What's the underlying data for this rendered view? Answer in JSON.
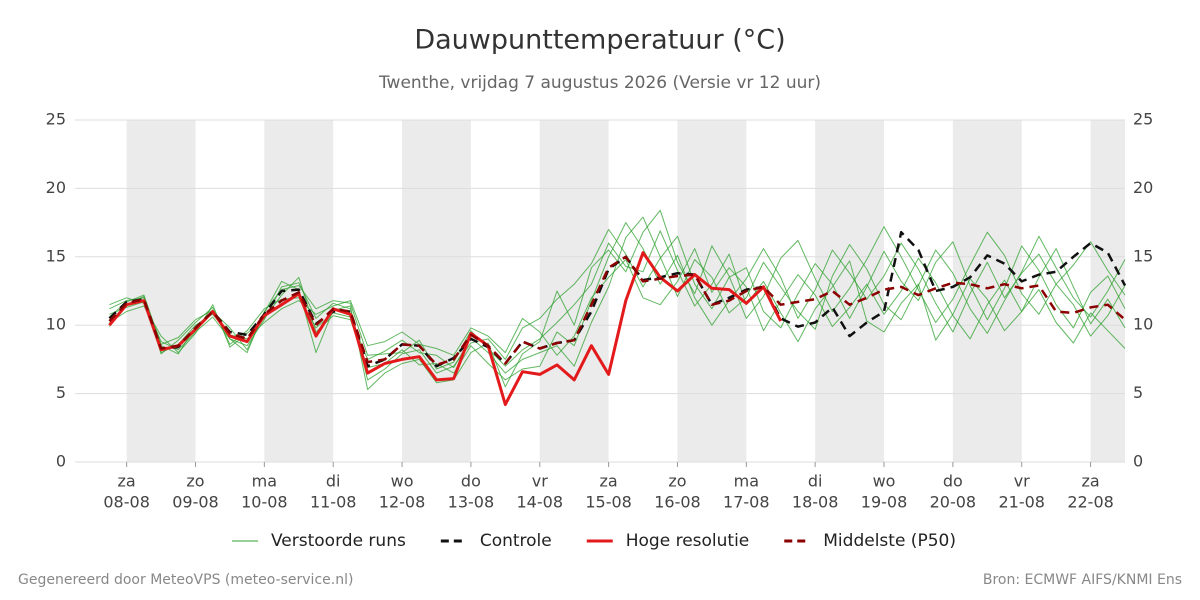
{
  "chart_data": {
    "type": "line",
    "title": "Dauwpunttemperatuur (°C)",
    "subtitle": "Twenthe, vrijdag  7 augustus 2026 (Versie vr 12 uur)",
    "x": [
      -0.25,
      0,
      0.25,
      0.5,
      0.75,
      1,
      1.25,
      1.5,
      1.75,
      2,
      2.25,
      2.5,
      2.75,
      3,
      3.25,
      3.5,
      3.75,
      4,
      4.25,
      4.5,
      4.75,
      5,
      5.25,
      5.5,
      5.75,
      6,
      6.25,
      6.5,
      6.75,
      7,
      7.25,
      7.5,
      7.75,
      8,
      8.25,
      8.5,
      8.75,
      9,
      9.25,
      9.5,
      9.75,
      10,
      10.25,
      10.5,
      10.75,
      11,
      11.25,
      11.5,
      11.75,
      12,
      12.25,
      12.5,
      12.75,
      13,
      13.25,
      13.5,
      13.75,
      14,
      14.25,
      14.5
    ],
    "xlim": [
      -0.75,
      14.5
    ],
    "xticks": [
      {
        "value": 0,
        "label": "za"
      },
      {
        "value": 1,
        "label": "zo"
      },
      {
        "value": 2,
        "label": "ma"
      },
      {
        "value": 3,
        "label": "di"
      },
      {
        "value": 4,
        "label": "wo"
      },
      {
        "value": 5,
        "label": "do"
      },
      {
        "value": 6,
        "label": "vr"
      },
      {
        "value": 7,
        "label": "za"
      },
      {
        "value": 8,
        "label": "zo"
      },
      {
        "value": 9,
        "label": "ma"
      },
      {
        "value": 10,
        "label": "di"
      },
      {
        "value": 11,
        "label": "wo"
      },
      {
        "value": 12,
        "label": "do"
      },
      {
        "value": 13,
        "label": "vr"
      },
      {
        "value": 14,
        "label": "za"
      }
    ],
    "xtick_dates": [
      "08-08",
      "09-08",
      "10-08",
      "11-08",
      "12-08",
      "13-08",
      "14-08",
      "15-08",
      "16-08",
      "17-08",
      "18-08",
      "19-08",
      "20-08",
      "21-08",
      "22-08"
    ],
    "ylim": [
      0,
      25
    ],
    "yticks": [
      0,
      5,
      10,
      15,
      20,
      25
    ],
    "grid": true,
    "ensemble": {
      "name": "Verstoorde runs",
      "color": "#2ca02c",
      "members": [
        [
          10.8,
          11.3,
          11.7,
          8.8,
          8.2,
          9.5,
          10.6,
          9.0,
          8.5,
          10.4,
          12.8,
          13.1,
          10.5,
          11.6,
          11.2,
          6.0,
          6.8,
          7.9,
          8.2,
          6.5,
          7.0,
          8.7,
          9.0,
          7.5,
          9.8,
          10.5,
          11.9,
          13.0,
          14.5,
          17.0,
          15.2,
          12.8,
          14.9,
          16.5,
          13.0,
          11.2,
          13.5,
          14.2,
          11.0,
          9.8,
          12.3,
          14.5,
          13.0,
          10.5,
          12.8,
          15.4,
          13.2,
          11.8,
          14.6,
          16.1,
          12.9,
          10.4,
          12.7,
          15.8,
          14.0,
          11.5,
          9.8,
          12.4,
          13.6,
          11.2
        ],
        [
          11.2,
          11.8,
          12.0,
          7.9,
          8.9,
          10.2,
          11.3,
          8.6,
          9.6,
          11.2,
          11.9,
          12.0,
          9.8,
          10.9,
          10.6,
          7.5,
          8.1,
          8.9,
          8.0,
          7.8,
          6.9,
          9.1,
          8.0,
          6.5,
          7.5,
          8.0,
          8.5,
          7.0,
          10.2,
          12.8,
          16.4,
          17.9,
          15.0,
          12.1,
          14.8,
          13.5,
          10.9,
          12.0,
          14.6,
          12.8,
          11.0,
          9.7,
          13.6,
          15.9,
          14.1,
          11.5,
          10.4,
          12.9,
          15.5,
          13.8,
          11.2,
          9.4,
          11.8,
          13.9,
          16.5,
          14.2,
          12.0,
          10.6,
          12.5,
          14.8
        ],
        [
          9.9,
          11.5,
          12.1,
          8.5,
          7.9,
          9.9,
          11.0,
          9.8,
          8.2,
          10.9,
          13.2,
          12.6,
          8.0,
          11.1,
          11.4,
          5.3,
          6.5,
          7.2,
          7.5,
          5.8,
          6.0,
          8.0,
          8.7,
          5.5,
          7.9,
          8.8,
          12.5,
          10.0,
          14.2,
          15.5,
          13.9,
          16.8,
          18.4,
          14.6,
          12.3,
          15.8,
          13.6,
          10.5,
          12.1,
          14.9,
          16.2,
          13.4,
          11.0,
          12.7,
          14.8,
          17.2,
          15.0,
          12.6,
          10.2,
          11.9,
          14.4,
          16.8,
          15.1,
          12.3,
          10.8,
          13.0,
          11.5,
          9.2,
          10.7,
          12.9
        ],
        [
          11.5,
          12.0,
          11.6,
          8.0,
          8.6,
          10.0,
          10.8,
          9.3,
          9.0,
          10.2,
          11.2,
          11.8,
          10.8,
          11.4,
          11.8,
          8.5,
          8.8,
          9.5,
          8.6,
          8.3,
          7.8,
          9.8,
          9.2,
          8.0,
          10.5,
          9.5,
          7.8,
          9.2,
          12.0,
          13.5,
          14.8,
          12.0,
          11.5,
          13.2,
          15.6,
          12.4,
          14.2,
          12.8,
          9.6,
          11.8,
          13.7,
          12.2,
          9.9,
          11.3,
          13.0,
          10.8,
          12.5,
          14.9,
          13.1,
          10.7,
          9.0,
          11.5,
          13.3,
          11.0,
          12.6,
          10.2,
          8.7,
          10.9,
          9.6,
          8.3
        ],
        [
          10.2,
          11.0,
          11.4,
          9.2,
          8.0,
          9.4,
          11.5,
          8.4,
          9.4,
          10.5,
          12.2,
          13.5,
          9.5,
          10.7,
          10.4,
          6.9,
          7.2,
          8.2,
          7.1,
          7.2,
          6.5,
          8.5,
          7.2,
          6.0,
          6.8,
          7.0,
          9.5,
          8.5,
          11.8,
          15.0,
          17.5,
          15.6,
          13.0,
          15.1,
          12.0,
          10.0,
          11.8,
          13.4,
          15.6,
          13.5,
          10.5,
          12.6,
          15.5,
          13.8,
          11.9,
          13.6,
          16.0,
          14.1,
          11.6,
          9.5,
          12.3,
          14.6,
          12.0,
          13.8,
          15.2,
          13.0,
          14.4,
          16.1,
          14.0,
          12.2
        ],
        [
          10.6,
          11.7,
          12.2,
          8.6,
          9.1,
          10.4,
          11.1,
          9.0,
          8.0,
          11.0,
          12.6,
          12.9,
          11.2,
          11.8,
          11.6,
          7.8,
          7.9,
          8.0,
          8.9,
          6.8,
          7.3,
          9.6,
          8.3,
          7.0,
          8.2,
          9.0,
          10.2,
          11.5,
          13.0,
          16.0,
          14.3,
          13.9,
          16.9,
          14.0,
          11.4,
          13.0,
          15.2,
          11.5,
          13.2,
          10.9,
          8.8,
          11.2,
          12.8,
          14.7,
          10.3,
          9.5,
          11.6,
          13.0,
          8.9,
          10.8,
          13.4,
          11.9,
          9.6,
          11.0,
          13.5,
          15.6,
          12.8,
          10.1,
          11.9,
          9.8
        ]
      ]
    },
    "series": [
      {
        "name": "Controle",
        "color": "#111111",
        "dash": true,
        "values": [
          10.5,
          11.7,
          11.9,
          8.3,
          8.4,
          9.8,
          11.0,
          9.5,
          9.3,
          10.8,
          12.5,
          12.6,
          10.1,
          11.0,
          11.0,
          7.0,
          7.5,
          8.6,
          8.5,
          7.0,
          7.6,
          9.0,
          8.4,
          7.2,
          8.8,
          8.3,
          8.7,
          8.9,
          11.0,
          14.1,
          15.0,
          13.3,
          13.5,
          13.8,
          13.7,
          11.5,
          12.0,
          12.6,
          12.8,
          10.5,
          9.9,
          10.2,
          11.3,
          9.2,
          10.2,
          11.0,
          16.8,
          15.5,
          12.5,
          12.8,
          13.5,
          15.1,
          14.5,
          13.2,
          13.7,
          13.9,
          15.0,
          16.0,
          15.3,
          12.9
        ]
      },
      {
        "name": "Hoge resolutie",
        "color": "#e31a1c",
        "dash": false,
        "values": [
          10.0,
          11.5,
          11.8,
          8.2,
          8.5,
          9.7,
          11.0,
          9.2,
          8.8,
          10.7,
          11.5,
          12.3,
          9.2,
          11.2,
          10.8,
          6.5,
          7.2,
          7.5,
          7.7,
          6.0,
          6.1,
          9.4,
          8.5,
          4.2,
          6.6,
          6.4,
          7.1,
          6.0,
          8.5,
          6.4,
          11.8,
          15.3,
          13.5,
          12.5,
          13.7,
          12.7,
          12.6,
          11.6,
          12.8,
          10.3,
          null,
          null,
          null,
          null,
          null,
          null,
          null,
          null,
          null,
          null,
          null,
          null,
          null,
          null,
          null,
          null,
          null,
          null,
          null,
          null
        ]
      },
      {
        "name": "Middelste (P50)",
        "color": "#8b0000",
        "dash": true,
        "values": [
          10.3,
          11.6,
          11.9,
          8.3,
          8.5,
          9.8,
          11.0,
          9.4,
          9.0,
          10.8,
          11.8,
          12.4,
          10.0,
          11.2,
          11.0,
          7.3,
          7.5,
          8.6,
          8.5,
          7.1,
          7.5,
          9.3,
          8.5,
          7.2,
          8.8,
          8.3,
          8.7,
          8.9,
          11.5,
          14.2,
          15.0,
          13.2,
          13.4,
          13.6,
          13.7,
          11.5,
          11.8,
          12.5,
          12.8,
          11.5,
          11.7,
          11.9,
          12.5,
          11.5,
          12.0,
          12.6,
          12.8,
          12.2,
          12.7,
          13.1,
          13.0,
          12.7,
          13.0,
          12.7,
          12.9,
          11.0,
          10.9,
          11.3,
          11.5,
          10.4
        ]
      }
    ],
    "footer_left": "Gegenereerd door MeteoVPS (meteo-service.nl)",
    "footer_right": "Bron: ECMWF AIFS/KNMI Ens"
  }
}
